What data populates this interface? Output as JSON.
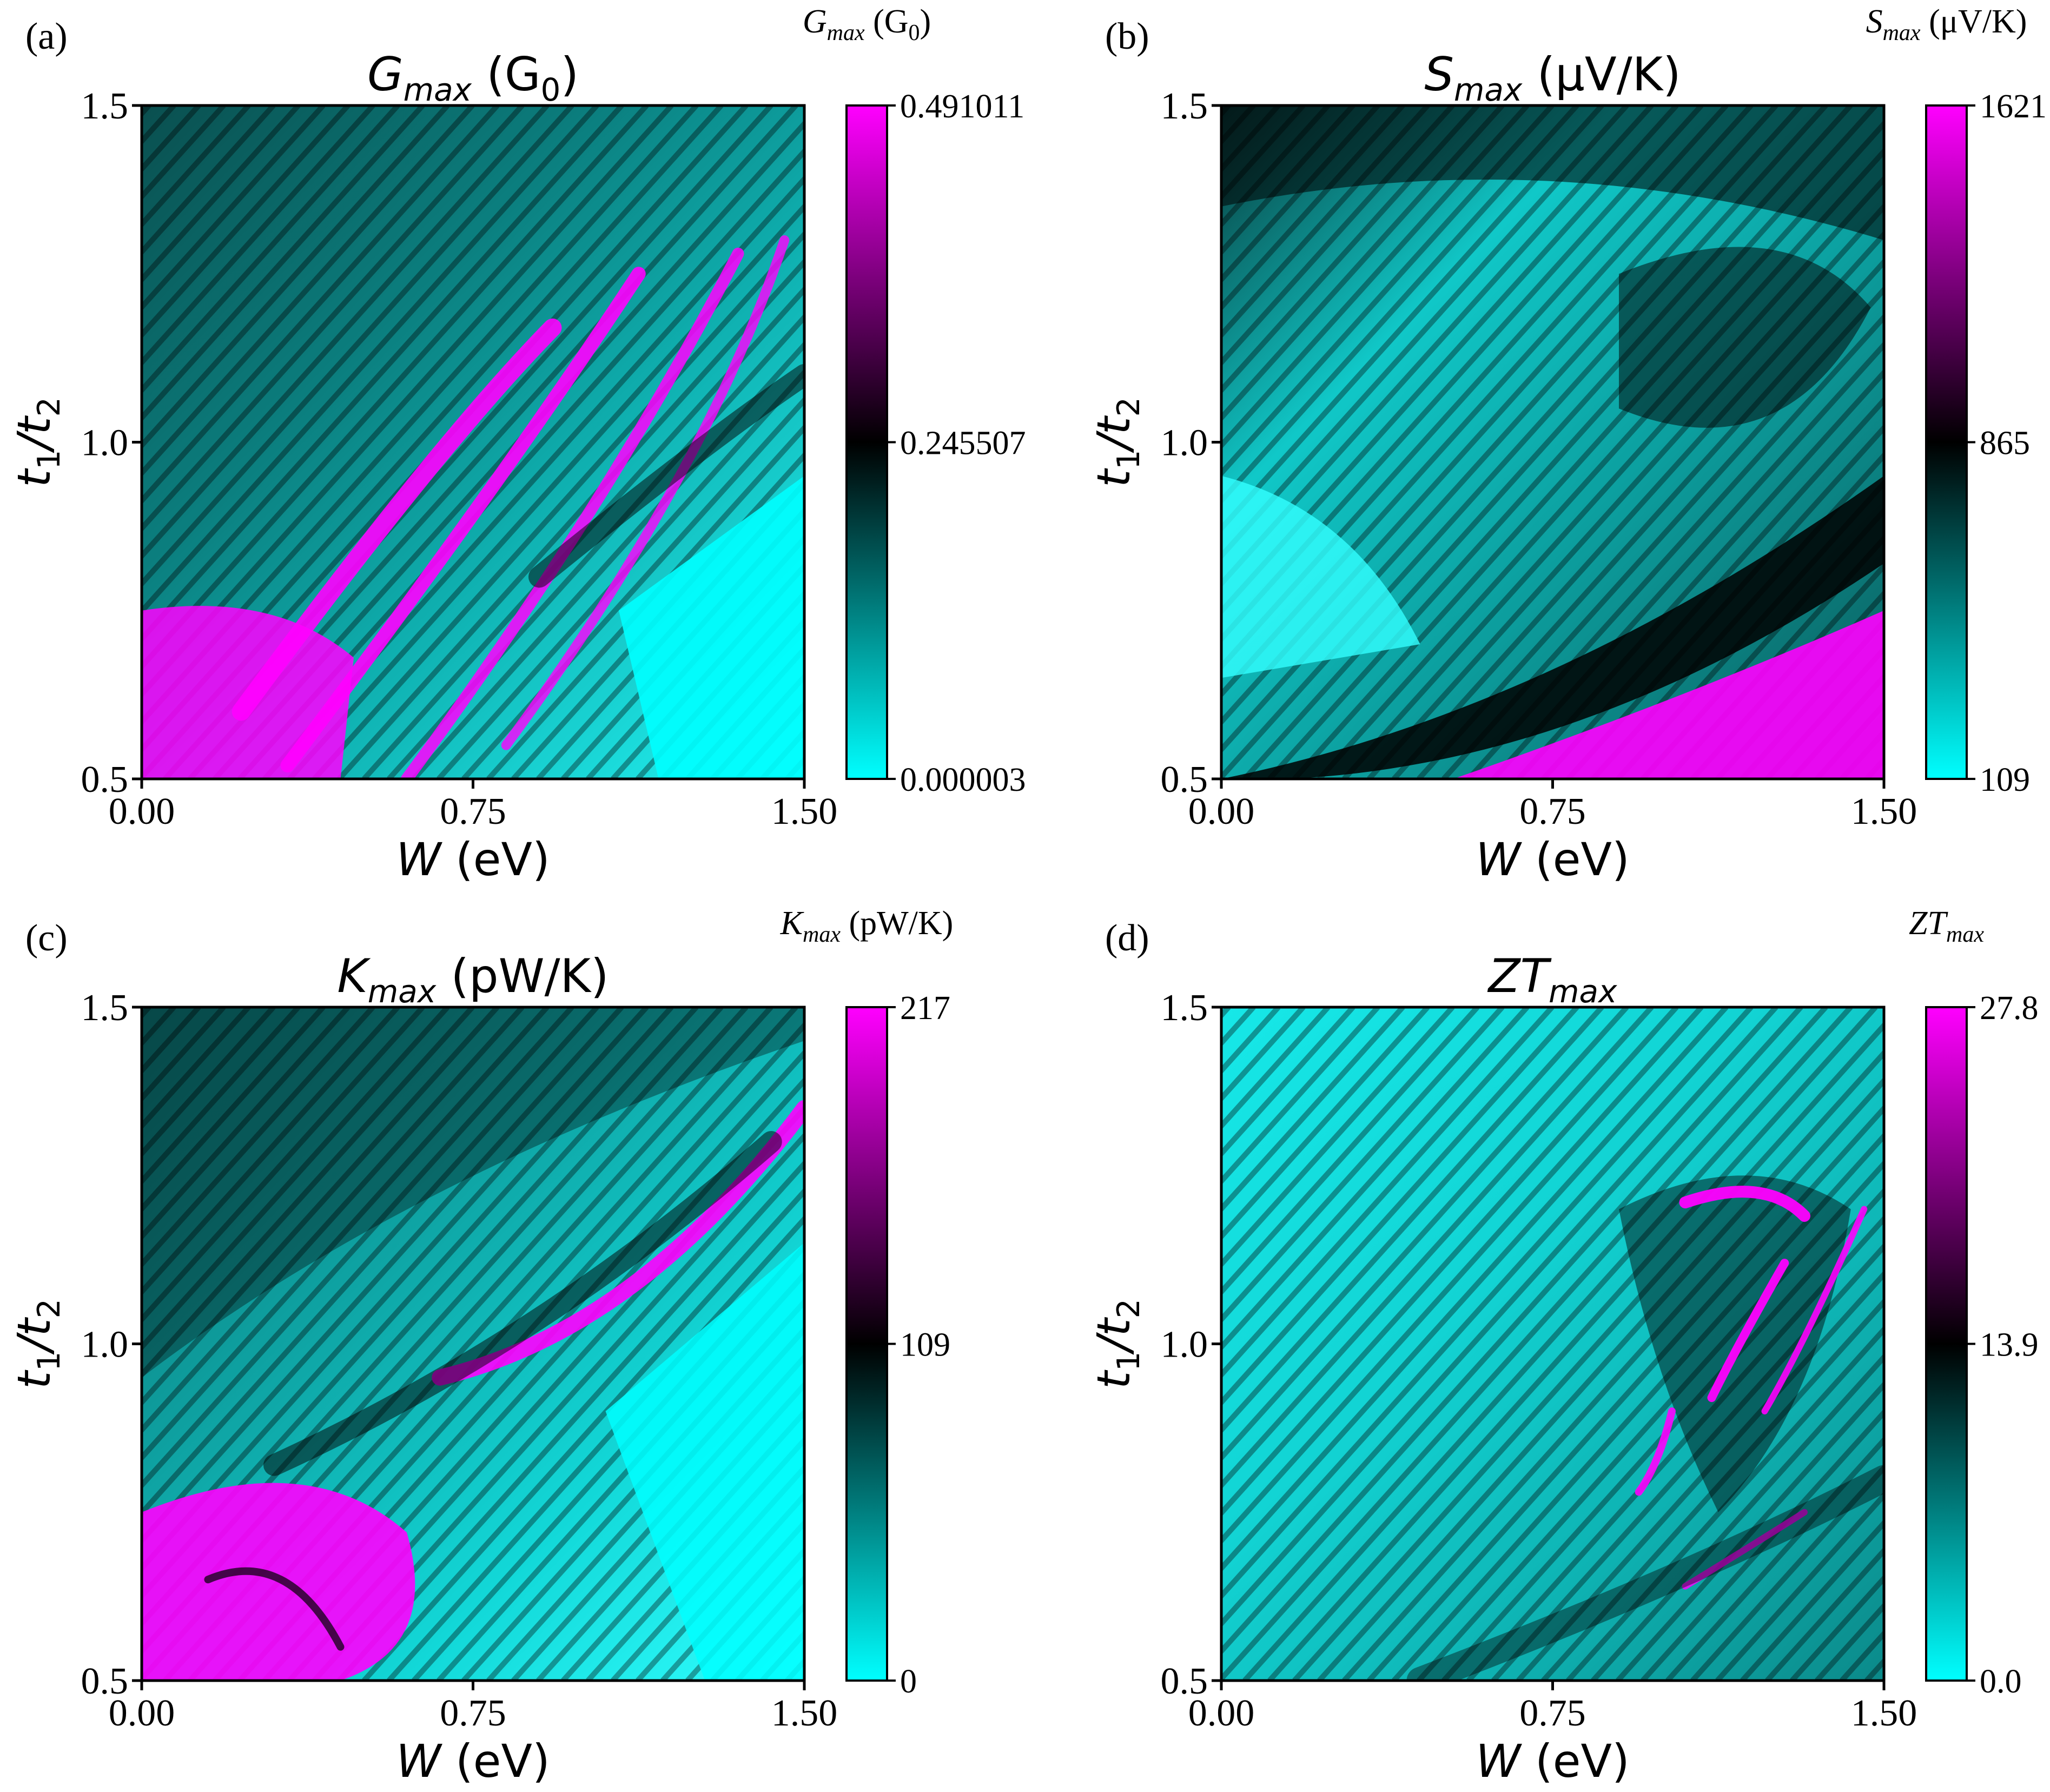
{
  "colors": {
    "cyan": "#00ffff",
    "black": "#000000",
    "magenta": "#ff00ff",
    "text": "#000000",
    "background": "#ffffff"
  },
  "chart_data": [
    {
      "type": "heatmap",
      "panel_label": "(a)",
      "title": {
        "main": "G",
        "sub": "max",
        "units": " (G",
        "units_sub": "0",
        "units_end": ")"
      },
      "colorbar_label": {
        "main": "G",
        "sub": "max",
        "units": " (G",
        "units_sub": "0",
        "units_end": ")"
      },
      "xlabel": {
        "main": "W",
        "units": " (eV)"
      },
      "ylabel": {
        "main": "t",
        "sub1": "1",
        "mid": "/t",
        "sub2": "2"
      },
      "x_ticks": [
        "0.00",
        "0.75",
        "1.50"
      ],
      "y_ticks": [
        "0.5",
        "1.0",
        "1.5"
      ],
      "x_range": [
        0,
        1.5
      ],
      "y_range": [
        0.5,
        1.5
      ],
      "colorbar_ticks": [
        "0.000003",
        "0.245507",
        "0.491011"
      ],
      "colorbar_range": [
        3e-06,
        0.491011
      ],
      "colormap": [
        "#00ffff",
        "#000000",
        "#ff00ff"
      ]
    },
    {
      "type": "heatmap",
      "panel_label": "(b)",
      "title": {
        "main": "S",
        "sub": "max",
        "units": " (μV/K)"
      },
      "colorbar_label": {
        "main": "S",
        "sub": "max",
        "units": " (μV/K)"
      },
      "xlabel": {
        "main": "W",
        "units": " (eV)"
      },
      "ylabel": {
        "main": "t",
        "sub1": "1",
        "mid": "/t",
        "sub2": "2"
      },
      "x_ticks": [
        "0.00",
        "0.75",
        "1.50"
      ],
      "y_ticks": [
        "0.5",
        "1.0",
        "1.5"
      ],
      "x_range": [
        0,
        1.5
      ],
      "y_range": [
        0.5,
        1.5
      ],
      "colorbar_ticks": [
        "109",
        "865",
        "1621"
      ],
      "colorbar_range": [
        109,
        1621
      ],
      "colormap": [
        "#00ffff",
        "#000000",
        "#ff00ff"
      ]
    },
    {
      "type": "heatmap",
      "panel_label": "(c)",
      "title": {
        "main": "K",
        "sub": "max",
        "units": " (pW/K)"
      },
      "colorbar_label": {
        "main": "K",
        "sub": "max",
        "units": " (pW/K)"
      },
      "xlabel": {
        "main": "W",
        "units": " (eV)"
      },
      "ylabel": {
        "main": "t",
        "sub1": "1",
        "mid": "/t",
        "sub2": "2"
      },
      "x_ticks": [
        "0.00",
        "0.75",
        "1.50"
      ],
      "y_ticks": [
        "0.5",
        "1.0",
        "1.5"
      ],
      "x_range": [
        0,
        1.5
      ],
      "y_range": [
        0.5,
        1.5
      ],
      "colorbar_ticks": [
        "0",
        "109",
        "217"
      ],
      "colorbar_range": [
        0,
        217
      ],
      "colormap": [
        "#00ffff",
        "#000000",
        "#ff00ff"
      ]
    },
    {
      "type": "heatmap",
      "panel_label": "(d)",
      "title": {
        "main": "ZT",
        "sub": "max",
        "units": ""
      },
      "colorbar_label": {
        "main": "ZT",
        "sub": "max",
        "units": ""
      },
      "xlabel": {
        "main": "W",
        "units": " (eV)"
      },
      "ylabel": {
        "main": "t",
        "sub1": "1",
        "mid": "/t",
        "sub2": "2"
      },
      "x_ticks": [
        "0.00",
        "0.75",
        "1.50"
      ],
      "y_ticks": [
        "0.5",
        "1.0",
        "1.5"
      ],
      "x_range": [
        0,
        1.5
      ],
      "y_range": [
        0.5,
        1.5
      ],
      "colorbar_ticks": [
        "0.0",
        "13.9",
        "27.8"
      ],
      "colorbar_range": [
        0,
        27.8
      ],
      "colormap": [
        "#00ffff",
        "#000000",
        "#ff00ff"
      ]
    }
  ]
}
